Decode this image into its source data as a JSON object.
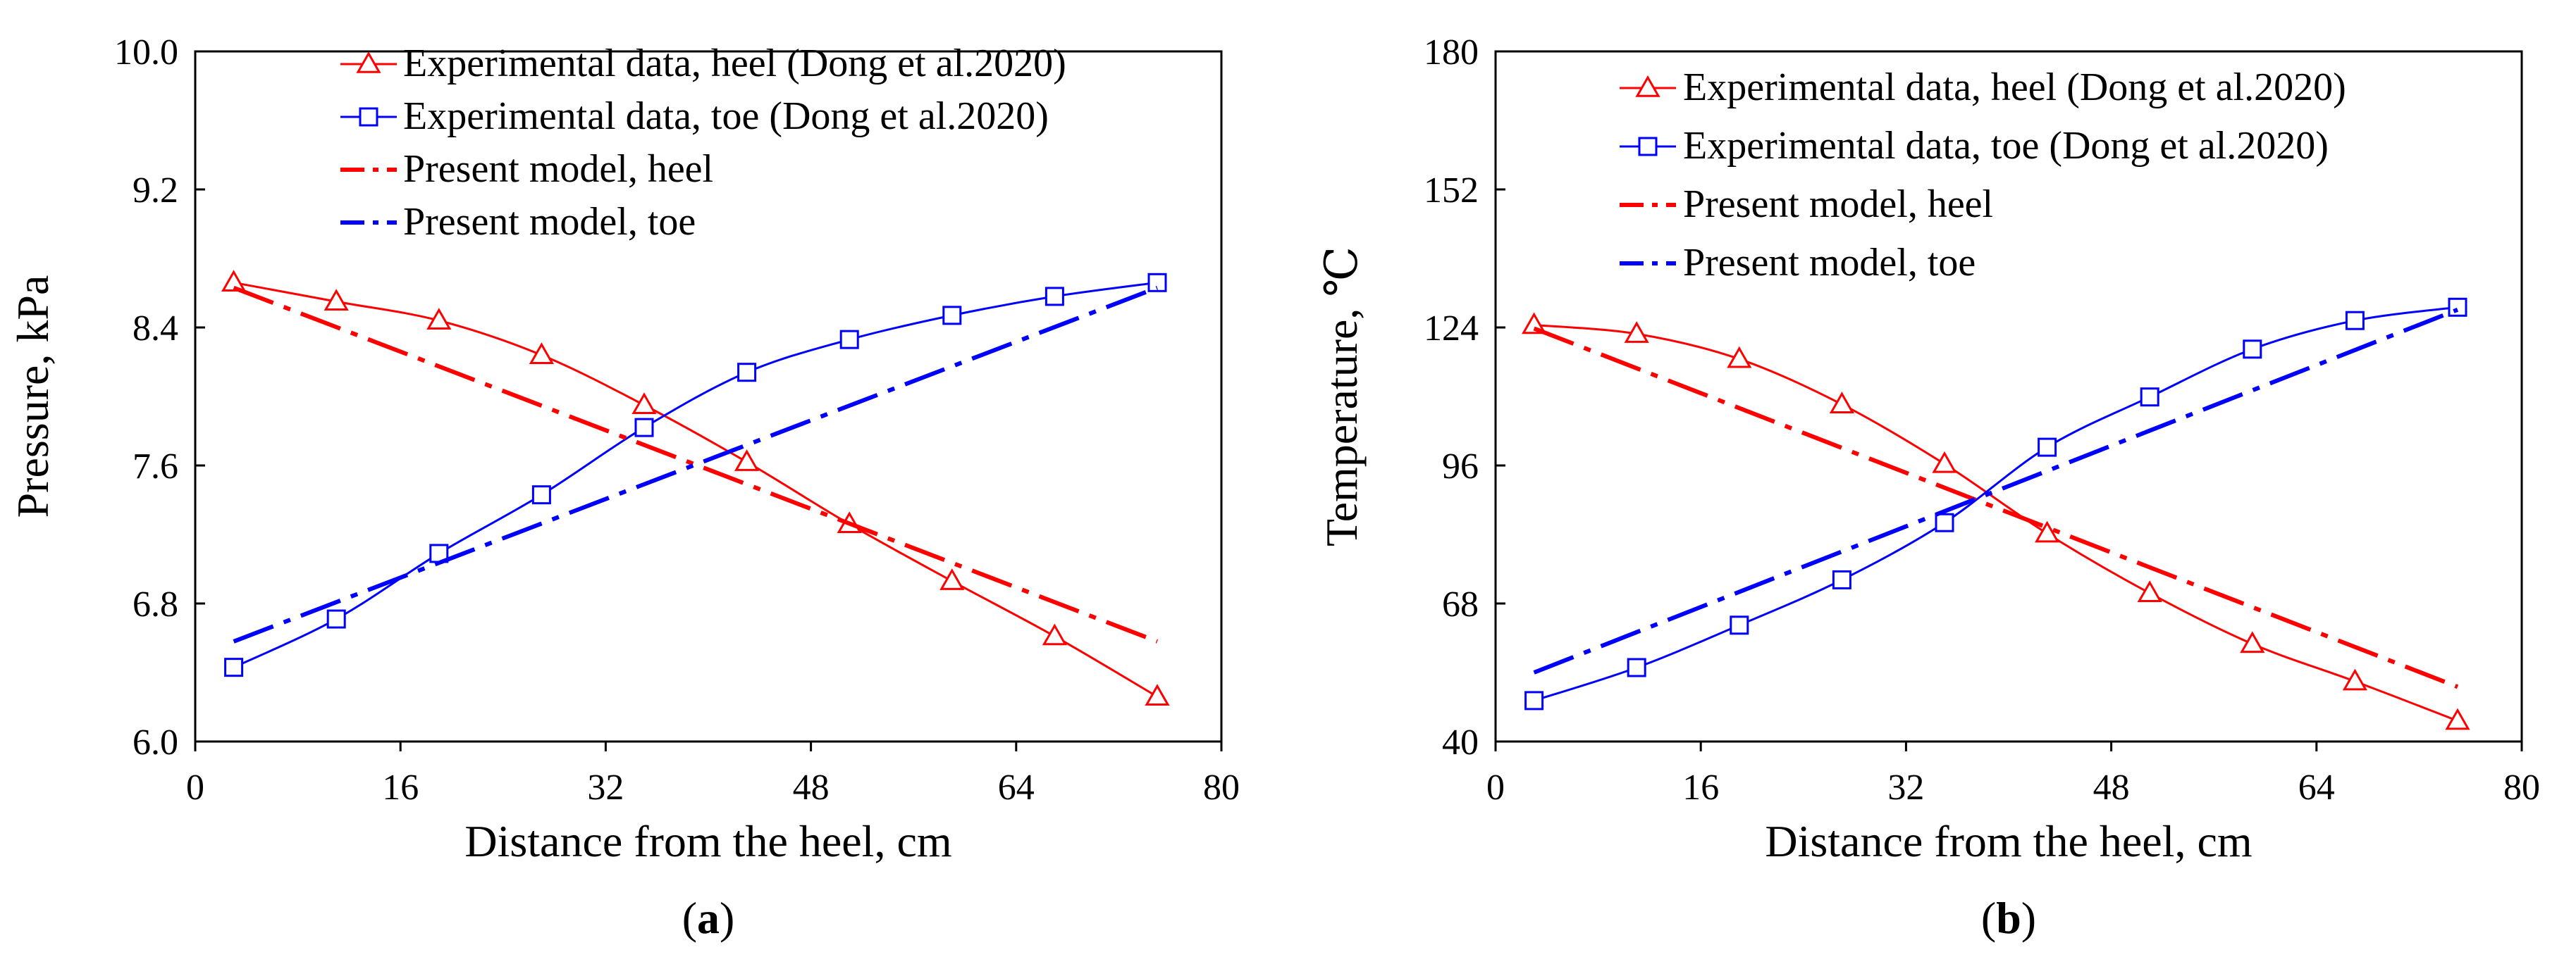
{
  "chart_data": [
    {
      "type": "line",
      "panel_label": "(a)",
      "panel_letter": "a",
      "xlabel": "Distance from the heel, cm",
      "ylabel": "Pressure, kPa",
      "xlim": [
        0,
        80
      ],
      "ylim": [
        6.0,
        10.0
      ],
      "xticks": [
        0,
        16,
        32,
        48,
        64,
        80
      ],
      "xtick_labels": [
        "0",
        "16",
        "32",
        "48",
        "64",
        "80"
      ],
      "yticks": [
        6.0,
        6.8,
        7.6,
        8.4,
        9.2,
        10.0
      ],
      "ytick_labels": [
        "6.0",
        "6.8",
        "7.6",
        "8.4",
        "9.2",
        "10.0"
      ],
      "legend_position": "top",
      "series": [
        {
          "name": "Experimental data, heel (Dong et al.2020)",
          "color": "#ff0000",
          "marker": "triangle",
          "line": "solid",
          "x": [
            3,
            11,
            19,
            27,
            35,
            43,
            51,
            59,
            67,
            75
          ],
          "y": [
            8.66,
            8.55,
            8.44,
            8.24,
            7.95,
            7.62,
            7.26,
            6.93,
            6.61,
            6.26
          ]
        },
        {
          "name": "Experimental data, toe (Dong et al.2020)",
          "color": "#0000ff",
          "marker": "square",
          "line": "solid",
          "x": [
            3,
            11,
            19,
            27,
            35,
            43,
            51,
            59,
            67,
            75
          ],
          "y": [
            6.43,
            6.71,
            7.09,
            7.43,
            7.82,
            8.14,
            8.33,
            8.47,
            8.58,
            8.66
          ]
        },
        {
          "name": "Present model, heel",
          "color": "#ff0000",
          "marker": "none",
          "line": "dashdot",
          "x": [
            3,
            75
          ],
          "y": [
            8.63,
            6.58
          ]
        },
        {
          "name": "Present model, toe",
          "color": "#0000ff",
          "marker": "none",
          "line": "dashdot",
          "x": [
            3,
            75
          ],
          "y": [
            6.58,
            8.63
          ]
        }
      ]
    },
    {
      "type": "line",
      "panel_label": "(b)",
      "panel_letter": "b",
      "xlabel": "Distance from the heel, cm",
      "ylabel": "Temperature, ℃",
      "xlim": [
        0,
        80
      ],
      "ylim": [
        40,
        180
      ],
      "xticks": [
        0,
        16,
        32,
        48,
        64,
        80
      ],
      "xtick_labels": [
        "0",
        "16",
        "32",
        "48",
        "64",
        "80"
      ],
      "yticks": [
        40,
        68,
        96,
        124,
        152,
        180
      ],
      "ytick_labels": [
        "40",
        "68",
        "96",
        "124",
        "152",
        "180"
      ],
      "legend_position": "top",
      "series": [
        {
          "name": "Experimental data, heel (Dong et al.2020)",
          "color": "#ff0000",
          "marker": "triangle",
          "line": "solid",
          "x": [
            3,
            11,
            19,
            27,
            35,
            43,
            51,
            59,
            67,
            75
          ],
          "y": [
            124.5,
            122.7,
            117.6,
            108.4,
            96.3,
            82.2,
            70.1,
            59.8,
            52.2,
            44.2
          ]
        },
        {
          "name": "Experimental data, toe (Dong et al.2020)",
          "color": "#0000ff",
          "marker": "square",
          "line": "solid",
          "x": [
            3,
            11,
            19,
            27,
            35,
            43,
            51,
            59,
            67,
            75
          ],
          "y": [
            48.3,
            55.0,
            63.6,
            72.8,
            84.4,
            99.7,
            109.9,
            119.6,
            125.4,
            128.1
          ]
        },
        {
          "name": "Present model, heel",
          "color": "#ff0000",
          "marker": "none",
          "line": "dashdot",
          "x": [
            3,
            75
          ],
          "y": [
            123.8,
            51.1
          ]
        },
        {
          "name": "Present model, toe",
          "color": "#0000ff",
          "marker": "none",
          "line": "dashdot",
          "x": [
            3,
            75
          ],
          "y": [
            54.0,
            127.6
          ]
        }
      ]
    }
  ]
}
